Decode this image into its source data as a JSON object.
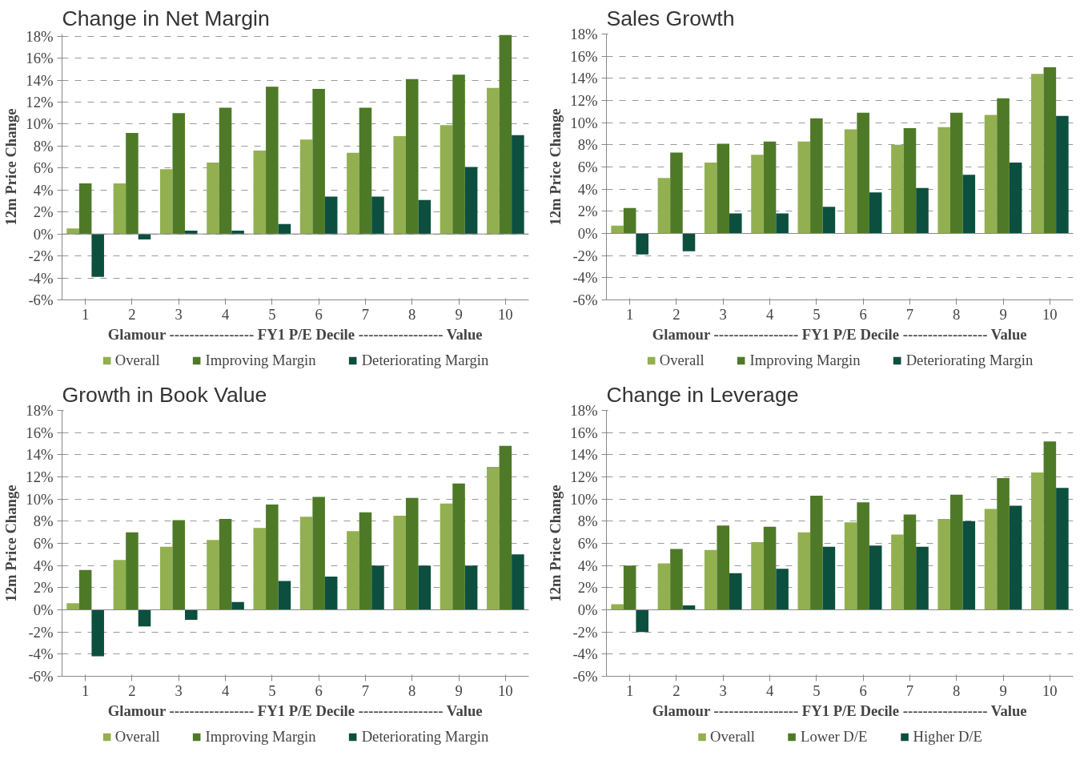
{
  "chart_data": [
    {
      "type": "bar",
      "title": "Change in Net Margin",
      "xlabel": "Glamour ----------------- FY1 P/E Decile ----------------- Value",
      "ylabel": "12m Price Change",
      "categories": [
        "1",
        "2",
        "3",
        "4",
        "5",
        "6",
        "7",
        "8",
        "9",
        "10"
      ],
      "series": [
        {
          "name": "Overall",
          "color": "#92b050",
          "values": [
            0.5,
            4.6,
            5.9,
            6.5,
            7.6,
            8.6,
            7.4,
            8.9,
            9.9,
            13.3
          ]
        },
        {
          "name": "Improving Margin",
          "color": "#4e7a27",
          "values": [
            4.6,
            9.2,
            11.0,
            11.5,
            13.4,
            13.2,
            11.5,
            14.1,
            14.5,
            18.1
          ]
        },
        {
          "name": "Deteriorating Margin",
          "color": "#0c4f3f",
          "values": [
            -3.9,
            -0.5,
            0.3,
            0.3,
            0.9,
            3.4,
            3.4,
            3.1,
            6.1,
            9.0
          ]
        }
      ],
      "ylim": [
        -6,
        18.2
      ],
      "yticks": [
        {
          "value": -6,
          "label": "-6%"
        },
        {
          "value": -4,
          "label": "-4%"
        },
        {
          "value": -2,
          "label": "-2%"
        },
        {
          "value": 0,
          "label": "0%"
        },
        {
          "value": 2,
          "label": "2%"
        },
        {
          "value": 4,
          "label": "4%"
        },
        {
          "value": 6,
          "label": "6%"
        },
        {
          "value": 8,
          "label": "8%"
        },
        {
          "value": 10,
          "label": "10%"
        },
        {
          "value": 12,
          "label": "12%"
        },
        {
          "value": 14,
          "label": "14%"
        },
        {
          "value": 16,
          "label": "16%"
        },
        {
          "value": 18,
          "label": "18%"
        }
      ],
      "grid": "y",
      "legend": "bottom"
    },
    {
      "type": "bar",
      "title": "Sales Growth",
      "xlabel": "Glamour ----------------- FY1 P/E Decile ----------------- Value",
      "ylabel": "12m Price Change",
      "categories": [
        "1",
        "2",
        "3",
        "4",
        "5",
        "6",
        "7",
        "8",
        "9",
        "10"
      ],
      "series": [
        {
          "name": "Overall",
          "color": "#92b050",
          "values": [
            0.7,
            5.0,
            6.4,
            7.1,
            8.3,
            9.4,
            8.0,
            9.6,
            10.7,
            14.4
          ]
        },
        {
          "name": "Improving Margin",
          "color": "#4e7a27",
          "values": [
            2.3,
            7.3,
            8.1,
            8.3,
            10.4,
            10.9,
            9.5,
            10.9,
            12.2,
            15.0
          ]
        },
        {
          "name": "Deteriorating Margin",
          "color": "#0c4f3f",
          "values": [
            -1.9,
            -1.6,
            1.8,
            1.8,
            2.4,
            3.7,
            4.1,
            5.3,
            6.4,
            10.6
          ]
        }
      ],
      "ylim": [
        -6,
        18
      ],
      "yticks": [
        {
          "value": -6,
          "label": "-6%"
        },
        {
          "value": -4,
          "label": "-4%"
        },
        {
          "value": -2,
          "label": "-2%"
        },
        {
          "value": 0,
          "label": "0%"
        },
        {
          "value": 2,
          "label": "2%"
        },
        {
          "value": 4,
          "label": "4%"
        },
        {
          "value": 6,
          "label": "6%"
        },
        {
          "value": 8,
          "label": "8%"
        },
        {
          "value": 10,
          "label": "10%"
        },
        {
          "value": 12,
          "label": "12%"
        },
        {
          "value": 14,
          "label": "14%"
        },
        {
          "value": 16,
          "label": "16%"
        },
        {
          "value": 18,
          "label": "18%"
        }
      ],
      "grid": "y",
      "legend": "bottom"
    },
    {
      "type": "bar",
      "title": "Growth in Book Value",
      "xlabel": "Glamour ----------------- FY1 P/E Decile ----------------- Value",
      "ylabel": "12m Price Change",
      "categories": [
        "1",
        "2",
        "3",
        "4",
        "5",
        "6",
        "7",
        "8",
        "9",
        "10"
      ],
      "series": [
        {
          "name": "Overall",
          "color": "#92b050",
          "values": [
            0.6,
            4.5,
            5.7,
            6.3,
            7.4,
            8.4,
            7.1,
            8.5,
            9.6,
            12.9
          ]
        },
        {
          "name": "Improving Margin",
          "color": "#4e7a27",
          "values": [
            3.6,
            7.0,
            8.1,
            8.2,
            9.5,
            10.2,
            8.8,
            10.1,
            11.4,
            14.8
          ]
        },
        {
          "name": "Deteriorating Margin",
          "color": "#0c4f3f",
          "values": [
            -4.2,
            -1.5,
            -0.9,
            0.7,
            2.6,
            3.0,
            4.0,
            4.0,
            4.0,
            5.0
          ]
        }
      ],
      "ylim": [
        -6,
        18
      ],
      "yticks": [
        {
          "value": -6,
          "label": "-6%"
        },
        {
          "value": -4,
          "label": "-4%"
        },
        {
          "value": -2,
          "label": "-2%"
        },
        {
          "value": 0,
          "label": "0%"
        },
        {
          "value": 2,
          "label": "2%"
        },
        {
          "value": 4,
          "label": "4%"
        },
        {
          "value": 6,
          "label": "6%"
        },
        {
          "value": 8,
          "label": "8%"
        },
        {
          "value": 10,
          "label": "10%"
        },
        {
          "value": 12,
          "label": "12%"
        },
        {
          "value": 14,
          "label": "14%"
        },
        {
          "value": 16,
          "label": "16%"
        },
        {
          "value": 18,
          "label": "18%"
        }
      ],
      "grid": "y",
      "legend": "bottom"
    },
    {
      "type": "bar",
      "title": "Change in Leverage",
      "xlabel": "Glamour ----------------- FY1 P/E Decile ----------------- Value",
      "ylabel": "12m Price Change",
      "categories": [
        "1",
        "2",
        "3",
        "4",
        "5",
        "6",
        "7",
        "8",
        "9",
        "10"
      ],
      "series": [
        {
          "name": "Overall",
          "color": "#92b050",
          "values": [
            0.5,
            4.2,
            5.4,
            6.1,
            7.0,
            7.9,
            6.8,
            8.2,
            9.1,
            12.4
          ]
        },
        {
          "name": "Lower D/E",
          "color": "#4e7a27",
          "values": [
            4.0,
            5.5,
            7.6,
            7.5,
            10.3,
            9.7,
            8.6,
            10.4,
            11.9,
            15.2
          ]
        },
        {
          "name": "Higher D/E",
          "color": "#0c4f3f",
          "values": [
            -2.0,
            0.4,
            3.3,
            3.7,
            5.7,
            5.8,
            5.7,
            8.0,
            9.4,
            11.0
          ]
        }
      ],
      "ylim": [
        -6,
        18
      ],
      "yticks": [
        {
          "value": -6,
          "label": "-6%"
        },
        {
          "value": -4,
          "label": "-4%"
        },
        {
          "value": -2,
          "label": "-2%"
        },
        {
          "value": 0,
          "label": "0%"
        },
        {
          "value": 2,
          "label": "2%"
        },
        {
          "value": 4,
          "label": "4%"
        },
        {
          "value": 6,
          "label": "6%"
        },
        {
          "value": 8,
          "label": "8%"
        },
        {
          "value": 10,
          "label": "10%"
        },
        {
          "value": 12,
          "label": "12%"
        },
        {
          "value": 14,
          "label": "14%"
        },
        {
          "value": 16,
          "label": "16%"
        },
        {
          "value": 18,
          "label": "18%"
        }
      ],
      "grid": "y",
      "legend": "bottom"
    }
  ]
}
